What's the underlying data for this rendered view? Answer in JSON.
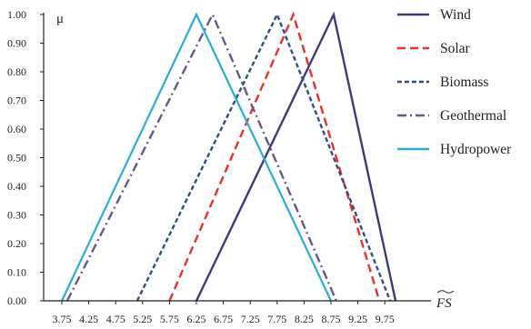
{
  "chart_data": {
    "type": "line",
    "title": "",
    "ylabel": "μ",
    "xlabel": "FS",
    "xlim": [
      3.75,
      10.0
    ],
    "ylim": [
      0,
      1
    ],
    "xticks": [
      "3.75",
      "4.25",
      "4.75",
      "5.25",
      "5.75",
      "6.25",
      "6.75",
      "7.25",
      "7.75",
      "8.25",
      "8.75",
      "9.25",
      "9.75"
    ],
    "yticks": [
      "0.00",
      "0.10",
      "0.20",
      "0.30",
      "0.40",
      "0.50",
      "0.60",
      "0.70",
      "0.80",
      "0.90",
      "1.00"
    ],
    "grid": false,
    "legend_position": "right",
    "series": [
      {
        "name": "Wind",
        "color": "#3f3b7a",
        "dash": "solid",
        "x": [
          6.25,
          8.8,
          9.95
        ],
        "y": [
          0,
          1,
          0
        ]
      },
      {
        "name": "Solar",
        "color": "#e8312c",
        "dash": "dash",
        "x": [
          5.75,
          8.05,
          9.65
        ],
        "y": [
          0,
          1,
          0
        ]
      },
      {
        "name": "Biomass",
        "color": "#2f4f86",
        "dash": "dot",
        "x": [
          5.15,
          7.75,
          9.85
        ],
        "y": [
          0,
          1,
          0
        ]
      },
      {
        "name": "Geothermal",
        "color": "#6a5787",
        "dash": "dashdot",
        "x": [
          3.85,
          6.55,
          8.85
        ],
        "y": [
          0,
          1,
          0
        ]
      },
      {
        "name": "Hydropower",
        "color": "#2aaed4",
        "dash": "solid",
        "x": [
          3.75,
          6.25,
          8.75
        ],
        "y": [
          0,
          1,
          0
        ]
      }
    ]
  }
}
